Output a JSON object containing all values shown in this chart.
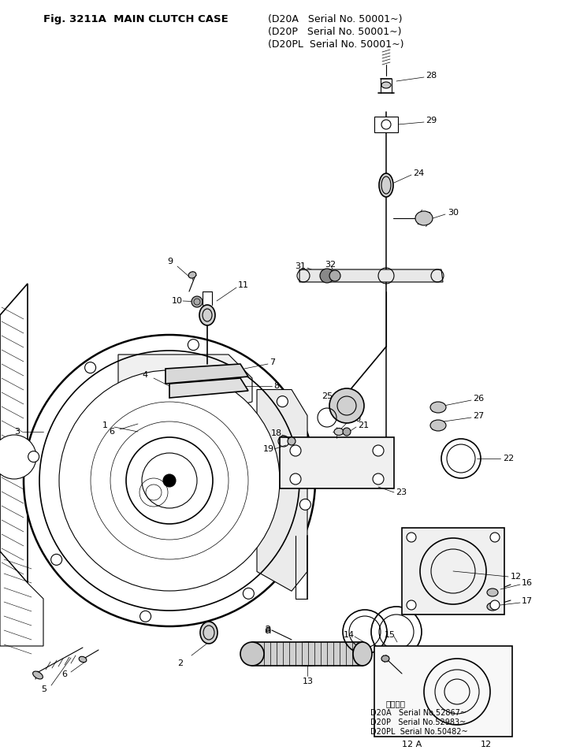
{
  "title_text": "Fig. 3211A  MAIN CLUTCH CASE",
  "serial_d20a": "(D20A   Serial No. 50001~)",
  "serial_d20p": "(D20P   Serial No. 50001~)",
  "serial_d20pl": "(D20PL  Serial No. 50001~)",
  "bg_color": "#ffffff",
  "lc": "#000000",
  "fig_width": 7.36,
  "fig_height": 9.52,
  "dpi": 100,
  "note_header": "適用号機",
  "note1": "D20A   Serial No.52867~",
  "note2": "D20P   Serial No.52983~",
  "note3": "D20PL  Serial No.50482~"
}
